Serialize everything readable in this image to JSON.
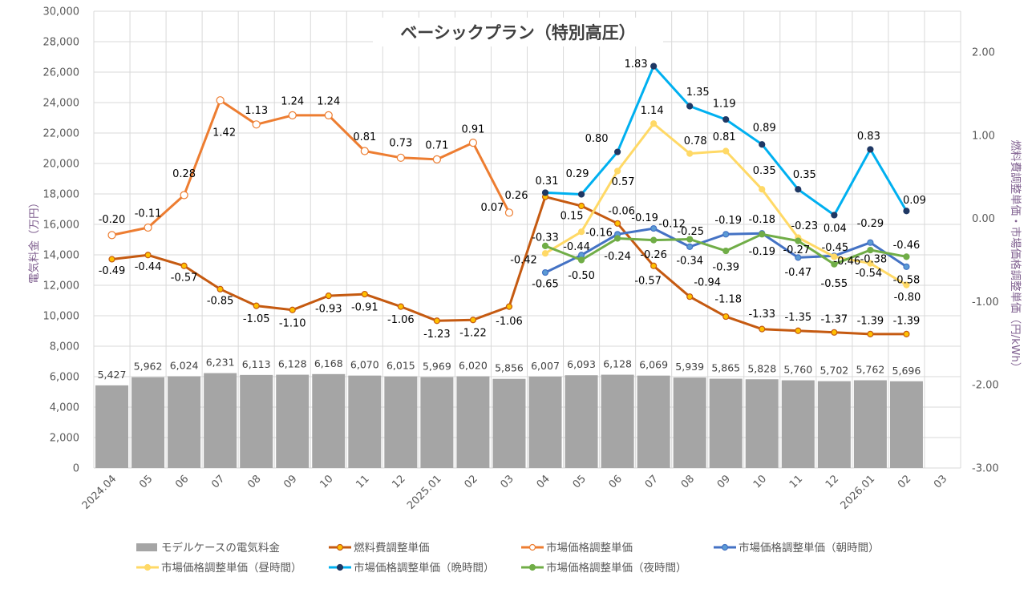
{
  "chart_data": {
    "type": "bar+line",
    "title": "ベーシックプラン（特別高圧）",
    "categories": [
      "2024.04",
      "05",
      "06",
      "07",
      "08",
      "09",
      "10",
      "11",
      "12",
      "2025.01",
      "02",
      "03",
      "04",
      "05",
      "06",
      "07",
      "08",
      "09",
      "10",
      "11",
      "12",
      "2026.01",
      "02",
      "03"
    ],
    "left_axis": {
      "label": "電気料金（万円）",
      "ylim": [
        0,
        30000
      ],
      "ticks": [
        "0",
        "2,000",
        "4,000",
        "6,000",
        "8,000",
        "10,000",
        "12,000",
        "14,000",
        "16,000",
        "18,000",
        "20,000",
        "22,000",
        "24,000",
        "26,000",
        "28,000",
        "30,000"
      ]
    },
    "right_axis": {
      "label": "燃料費調整単価・市場価格調整単価（円/kWh）",
      "ylim": [
        -3,
        2
      ],
      "ticks": [
        "2.00",
        "1.00",
        "0.00",
        "-1.00",
        "-2.00",
        "-3.00"
      ]
    },
    "grid": true,
    "legend_position": "bottom",
    "bars": {
      "name": "モデルケースの電気料金",
      "color": "#a5a5a5",
      "values": [
        5427,
        5962,
        6024,
        6231,
        6113,
        6128,
        6168,
        6070,
        6015,
        5969,
        6020,
        5856,
        6007,
        6093,
        6128,
        6069,
        5939,
        5865,
        5828,
        5760,
        5702,
        5762,
        5696,
        null
      ],
      "labels": [
        "5,427",
        "5,962",
        "6,024",
        "6,231",
        "6,113",
        "6,128",
        "6,168",
        "6,070",
        "6,015",
        "5,969",
        "6,020",
        "5,856",
        "6,007",
        "6,093",
        "6,128",
        "6,069",
        "5,939",
        "5,865",
        "5,828",
        "5,760",
        "5,702",
        "5,762",
        "5,696",
        null
      ]
    },
    "series": [
      {
        "name": "燃料費調整単価",
        "color": "#c55a11",
        "marker": "#ffc000",
        "marker_stroke": "#c55a11",
        "axis": "right",
        "values": [
          -0.49,
          -0.44,
          -0.57,
          -0.85,
          -1.05,
          -1.1,
          -0.93,
          -0.91,
          -1.06,
          -1.23,
          -1.22,
          -1.06,
          0.26,
          0.15,
          -0.06,
          -0.57,
          -0.94,
          -1.18,
          -1.33,
          -1.35,
          -1.37,
          -1.39,
          -1.39,
          null
        ]
      },
      {
        "name": "市場価格調整単価",
        "color": "#ed7d31",
        "marker": "#ffffff",
        "marker_stroke": "#ed7d31",
        "axis": "right",
        "values": [
          -0.2,
          -0.11,
          0.28,
          1.42,
          1.13,
          1.24,
          1.24,
          0.81,
          0.73,
          0.71,
          0.91,
          0.07,
          null,
          null,
          null,
          null,
          null,
          null,
          null,
          null,
          null,
          null,
          null,
          null
        ]
      },
      {
        "name": "市場価格調整単価（朝時間）",
        "color": "#4472c4",
        "marker": "#5b9bd5",
        "marker_stroke": "#4472c4",
        "axis": "right",
        "values": [
          null,
          null,
          null,
          null,
          null,
          null,
          null,
          null,
          null,
          null,
          null,
          null,
          -0.65,
          -0.44,
          -0.19,
          -0.12,
          -0.34,
          -0.19,
          -0.18,
          -0.47,
          -0.45,
          -0.29,
          -0.58,
          null
        ]
      },
      {
        "name": "市場価格調整単価（昼時間）",
        "color": "#ffd966",
        "marker": "#ffd966",
        "marker_stroke": "#ffd966",
        "axis": "right",
        "values": [
          null,
          null,
          null,
          null,
          null,
          null,
          null,
          null,
          null,
          null,
          null,
          null,
          -0.42,
          -0.16,
          0.57,
          1.14,
          0.78,
          0.81,
          0.35,
          -0.23,
          -0.46,
          -0.54,
          -0.8,
          null
        ]
      },
      {
        "name": "市場価格調整単価（晩時間）",
        "color": "#00b0f0",
        "marker": "#1f3864",
        "marker_stroke": "#1f3864",
        "axis": "right",
        "values": [
          null,
          null,
          null,
          null,
          null,
          null,
          null,
          null,
          null,
          null,
          null,
          null,
          0.31,
          0.29,
          0.8,
          1.83,
          1.35,
          1.19,
          0.89,
          0.35,
          0.04,
          0.83,
          0.09,
          null
        ]
      },
      {
        "name": "市場価格調整単価（夜時間）",
        "color": "#70ad47",
        "marker": "#70ad47",
        "marker_stroke": "#70ad47",
        "axis": "right",
        "values": [
          null,
          null,
          null,
          null,
          null,
          null,
          null,
          null,
          null,
          null,
          null,
          null,
          -0.33,
          -0.5,
          -0.24,
          -0.26,
          -0.25,
          -0.39,
          -0.19,
          -0.27,
          -0.55,
          -0.38,
          -0.46,
          null
        ]
      }
    ]
  }
}
